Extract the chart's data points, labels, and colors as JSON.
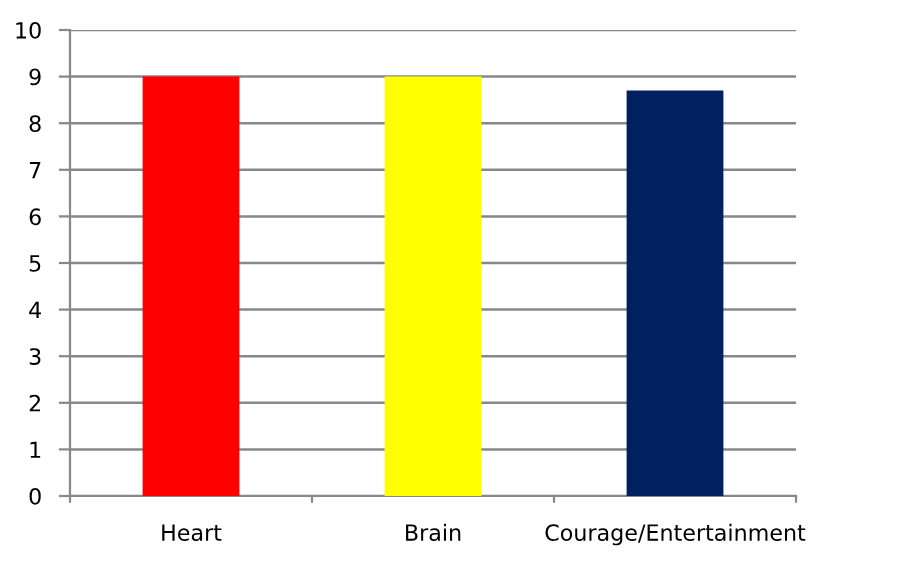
{
  "chart_data": {
    "type": "bar",
    "categories": [
      "Heart",
      "Brain",
      "Courage/Entertainment"
    ],
    "values": [
      9,
      9,
      8.7
    ],
    "colors": [
      "#ff0000",
      "#ffff00",
      "#002060"
    ],
    "ylim": [
      0,
      10
    ],
    "yticks": [
      0,
      1,
      2,
      3,
      4,
      5,
      6,
      7,
      8,
      9,
      10
    ],
    "grid": "y",
    "legend": false
  }
}
